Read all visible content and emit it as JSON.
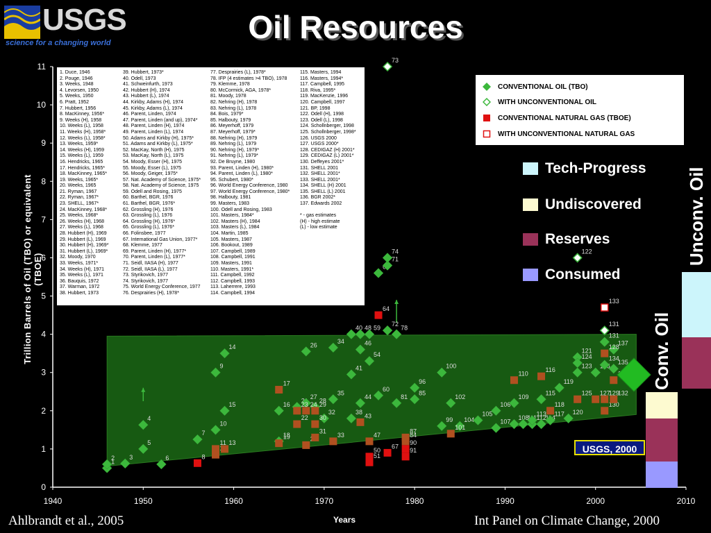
{
  "logo": {
    "text": "USGS",
    "tagline": "science for a changing world"
  },
  "title": "Oil Resources",
  "footer": {
    "left": "Ahlbrandt et al., 2005",
    "right": "Int Panel on Climate Change, 2000"
  },
  "usgs_badge": "USGS, 2000",
  "vertical_labels": {
    "unconv": "Unconv. Oil",
    "conv": "Conv. Oil"
  },
  "categories": [
    {
      "label": "Tech-Progress",
      "color": "#ccf5fb"
    },
    {
      "label": "Undiscovered",
      "color": "#fdfad0"
    },
    {
      "label": "Reserves",
      "color": "#9a3259"
    },
    {
      "label": "Consumed",
      "color": "#9999ff"
    }
  ],
  "legend": [
    {
      "label": "CONVENTIONAL OIL (TBO)",
      "marker": "filled-diamond",
      "color": "#3cb83c"
    },
    {
      "label": "WITH UNCONVENTIONAL OIL",
      "marker": "open-diamond",
      "color": "#3cb83c"
    },
    {
      "label": "CONVENTIONAL NATURAL GAS (TBOE)",
      "marker": "filled-square",
      "color": "#e01010"
    },
    {
      "label": "WITH UNCONVENTIONAL NATURAL GAS",
      "marker": "open-square",
      "color": "#e01010"
    }
  ],
  "references": [
    [
      "1. Duce, 1946",
      "2. Pouge, 1946",
      "3. Weeks, 1948",
      "4. Levorsen, 1950",
      "5. Weeks, 1950",
      "6. Pratt, 1952",
      "7. Hubbert, 1956",
      "8. MacKinney, 1956*",
      "9. Weeks (H), 1958",
      "10. Weeks (L), 1958",
      "11. Weeks (H), 1958*",
      "12. Weeks (L), 1958*",
      "13. Weeks, 1959*",
      "14. Weeks (H), 1959",
      "15. Weeks (L), 1959",
      "16. Hendricks, 1965",
      "17. Hendricks, 1965*",
      "18. MacKinney, 1965*",
      "19. Weeks, 1965*",
      "20. Weeks, 1965",
      "21. Ryman, 1967",
      "22. Ryman, 1967*",
      "23. SHELL, 1967*",
      "24. MacKinney, 1968*",
      "25. Weeks, 1968*",
      "26. Weeks (H), 1968",
      "27. Weeks (L), 1968",
      "28. Hubbert (H), 1969",
      "29. Hubbert (L), 1969",
      "30. Hubbert (H), 1969*",
      "31. Hubbert (L), 1969*",
      "32. Moody, 1970",
      "33. Weeks, 1971*",
      "34. Weeks (H), 1971",
      "35. Weeks (L), 1971",
      "36. Bauquis, 1972",
      "37. Warman, 1972",
      "38. Hubbert, 1973"
    ],
    [
      "39. Hubbert, 1973*",
      "40. Odell, 1973",
      "41. Schweinfurth, 1973",
      "42. Hubbert (H), 1974",
      "43. Hubbert (L), 1974",
      "44. Kirkby, Adams (H), 1974",
      "45. Kirkby, Adams (L), 1974",
      "46. Parent, Linden, 1974",
      "47. Parent, Linden (and up), 1974*",
      "48. Parent, Linden (H), 1974",
      "49. Parent, Linden (L), 1974",
      "50. Adams and Kirkby (H), 1975*",
      "51. Adams and Kirkby (L), 1975*",
      "52. MacKay, North (H), 1975",
      "53. MacKay, North (L), 1975",
      "54. Moody, Esser (H), 1975",
      "55. Moody, Esser (L), 1975",
      "56. Moody, Geiger, 1975*",
      "57. Nat. Academy of Science, 1975*",
      "58. Nat. Academy of Science, 1975",
      "59. Odell and Rosing, 1975",
      "60. Barthel, BGR, 1976",
      "61. Barthel, BGR, 1976*",
      "62. Grossling (H), 1976",
      "63. Grossling (L), 1976",
      "64. Grossling (H), 1976*",
      "65. Grossling (L), 1976*",
      "66. Folinsbee, 1977",
      "67. International Gas Union, 1977*",
      "68. Klemme, 1977",
      "69. Parent, Linden (H), 1977*",
      "70. Parent, Linden (L), 1977*",
      "71. Seidl, IIASA (H), 1977",
      "72. Seidl, IIASA (L), 1977",
      "73. Styrikovich, 1977",
      "74. Styrikovich, 1977",
      "75. World Energy Conference, 1977",
      "76. Desprairies (H), 1978*"
    ],
    [
      "77. Desprairies (L), 1978*",
      "78. IFP (4 estimates >4 TBO), 1978",
      "79. Klemme, 1978",
      "80. McCormick, AGA, 1978*",
      "81. Moody, 1978",
      "82. Nehring (H), 1978",
      "83. Nehring (L), 1978",
      "84. Bois, 1979*",
      "85. Halbouty, 1979",
      "86. Meyerhoff, 1979",
      "87. Meyerhoff, 1979*",
      "88. Nehring (H), 1979",
      "89. Nehring (L), 1979",
      "90. Nehring (H), 1979*",
      "91. Nehring (L), 1979*",
      "92. De Bruyne, 1980",
      "93. Parent, Linden (H), 1980*",
      "94. Parent, Linden (L), 1980*",
      "95. Schubert, 1980*",
      "96. World Energy Conference, 1980",
      "97. World Energy Conference, 1980*",
      "98. Halbouty, 1981",
      "99. Masters, 1983",
      "100. Odell and Rosing, 1983",
      "101. Masters, 1984*",
      "102. Masters (H), 1984",
      "103. Masters (L), 1984",
      "104. Martin, 1985",
      "105. Masters, 1987",
      "106. Bookout, 1989",
      "107. Campbell, 1989",
      "108. Campbell, 1991",
      "109. Masters, 1991",
      "110. Masters, 1991*",
      "111. Campbell, 1992",
      "112. Campbell, 1993",
      "113. Laherrere, 1993",
      "114. Campbell, 1994"
    ],
    [
      "115. Masters, 1994",
      "116. Masters, 1994*",
      "117. Campbell, 1995",
      "118. Riva, 1995*",
      "119. MacKenzie, 1996",
      "120. Campbell, 1997",
      "121. BP, 1998",
      "122. Odell (H), 1998",
      "123. Odell (L), 1998",
      "124. Schollnberger, 1998",
      "125. Schollnberger, 1998*",
      "126. USGS 2000",
      "127. USGS 2000*",
      "128. CEDIGAZ (H) 2001*",
      "129. CEDIGAZ (L) 2001*",
      "130. Deffeyes 2001*",
      "131. SHELL 2001",
      "132. SHELL 2001*",
      "133. SHELL 2001*",
      "134. SHELL (H) 2001",
      "135. SHELL (L) 2001",
      "136. BGR 2002*",
      "137. Edwards 2002",
      "",
      "* - gas estimates",
      "(H) - high estimate",
      "(L) - low estimate"
    ]
  ],
  "chart_data": {
    "type": "scatter",
    "xlabel": "Years",
    "ylabel": "Trillion Barrels of Oil (TBO) or equivalent (TBOE)",
    "xlim": [
      1940,
      2010
    ],
    "ylim": [
      0,
      11
    ],
    "xticks": [
      1940,
      1950,
      1960,
      1970,
      1980,
      1990,
      2000,
      2010
    ],
    "yticks": [
      0,
      1,
      2,
      3,
      4,
      5,
      6,
      7,
      8,
      9,
      10,
      11
    ],
    "band_polygon": [
      [
        1946,
        3.95
      ],
      [
        2004.5,
        4.0
      ],
      [
        2004.5,
        1.9
      ],
      [
        1946,
        0.55
      ]
    ],
    "conventional_oil": [
      {
        "n": 1,
        "x": 1946,
        "y": 0.5
      },
      {
        "n": 2,
        "x": 1946,
        "y": 0.6
      },
      {
        "n": 3,
        "x": 1948,
        "y": 0.62
      },
      {
        "n": 4,
        "x": 1950,
        "y": 1.63
      },
      {
        "n": 5,
        "x": 1950,
        "y": 1.0
      },
      {
        "n": 6,
        "x": 1952,
        "y": 0.6
      },
      {
        "n": 7,
        "x": 1956,
        "y": 1.25
      },
      {
        "n": 9,
        "x": 1958,
        "y": 3.0
      },
      {
        "n": 10,
        "x": 1958,
        "y": 1.5
      },
      {
        "n": 14,
        "x": 1959,
        "y": 3.5
      },
      {
        "n": 15,
        "x": 1959,
        "y": 2.0
      },
      {
        "n": 16,
        "x": 1965,
        "y": 2.0
      },
      {
        "n": 18,
        "x": 1965,
        "y": 1.2
      },
      {
        "n": 21,
        "x": 1967,
        "y": 2.1
      },
      {
        "n": 26,
        "x": 1968,
        "y": 3.55
      },
      {
        "n": 27,
        "x": 1968,
        "y": 2.2
      },
      {
        "n": 28,
        "x": 1969,
        "y": 2.1
      },
      {
        "n": 32,
        "x": 1970,
        "y": 1.8
      },
      {
        "n": 34,
        "x": 1971,
        "y": 3.65
      },
      {
        "n": 35,
        "x": 1971,
        "y": 2.3
      },
      {
        "n": 38,
        "x": 1973,
        "y": 1.8
      },
      {
        "n": 40,
        "x": 1973,
        "y": 4.0
      },
      {
        "n": 41,
        "x": 1973,
        "y": 2.95
      },
      {
        "n": 44,
        "x": 1974,
        "y": 2.2
      },
      {
        "n": 46,
        "x": 1974,
        "y": 3.6
      },
      {
        "n": 48,
        "x": 1974,
        "y": 4.0
      },
      {
        "n": 54,
        "x": 1975,
        "y": 3.3
      },
      {
        "n": 59,
        "x": 1975,
        "y": 4.0
      },
      {
        "n": 60,
        "x": 1976,
        "y": 2.4
      },
      {
        "n": 62,
        "x": 1976,
        "y": 5.6
      },
      {
        "n": 71,
        "x": 1977,
        "y": 5.8
      },
      {
        "n": 72,
        "x": 1977,
        "y": 4.1
      },
      {
        "n": 74,
        "x": 1977,
        "y": 6.0
      },
      {
        "n": 78,
        "x": 1978,
        "y": 4.0
      },
      {
        "n": 81,
        "x": 1978,
        "y": 2.2
      },
      {
        "n": 85,
        "x": 1980,
        "y": 2.3
      },
      {
        "n": 96,
        "x": 1980,
        "y": 2.6
      },
      {
        "n": 99,
        "x": 1983,
        "y": 1.6
      },
      {
        "n": 100,
        "x": 1983,
        "y": 3.0
      },
      {
        "n": 102,
        "x": 1984,
        "y": 2.2
      },
      {
        "n": 104,
        "x": 1985,
        "y": 1.6
      },
      {
        "n": 105,
        "x": 1987,
        "y": 1.75
      },
      {
        "n": 106,
        "x": 1989,
        "y": 2.0
      },
      {
        "n": 107,
        "x": 1989,
        "y": 1.55
      },
      {
        "n": 108,
        "x": 1991,
        "y": 1.65
      },
      {
        "n": 109,
        "x": 1991,
        "y": 2.2
      },
      {
        "n": 111,
        "x": 1992,
        "y": 1.65
      },
      {
        "n": 112,
        "x": 1993,
        "y": 1.65
      },
      {
        "n": 113,
        "x": 1993,
        "y": 1.75
      },
      {
        "n": 114,
        "x": 1994,
        "y": 1.65
      },
      {
        "n": 115,
        "x": 1994,
        "y": 2.3
      },
      {
        "n": 117,
        "x": 1995,
        "y": 1.75
      },
      {
        "n": 119,
        "x": 1996,
        "y": 2.6
      },
      {
        "n": 120,
        "x": 1997,
        "y": 1.8
      },
      {
        "n": 121,
        "x": 1998,
        "y": 3.4
      },
      {
        "n": 123,
        "x": 1998,
        "y": 3.0
      },
      {
        "n": 124,
        "x": 1998,
        "y": 3.25
      },
      {
        "n": 126,
        "x": 2000,
        "y": 3.0
      },
      {
        "n": 131,
        "x": 2001,
        "y": 3.8
      },
      {
        "n": 134,
        "x": 2001,
        "y": 3.2
      },
      {
        "n": 135,
        "x": 2002,
        "y": 3.1
      },
      {
        "n": 137,
        "x": 2002,
        "y": 3.6
      }
    ],
    "with_unconventional_oil": [
      {
        "n": 73,
        "x": 1977,
        "y": 11.0
      },
      {
        "n": 122,
        "x": 1998,
        "y": 6.0
      },
      {
        "n": 131,
        "x": 2001,
        "y": 4.1
      }
    ],
    "conventional_natural_gas": [
      {
        "n": 8,
        "x": 1956,
        "y": 0.63
      },
      {
        "n": 11,
        "x": 1958,
        "y": 1.0
      },
      {
        "n": 12,
        "x": 1958,
        "y": 0.85
      },
      {
        "n": 13,
        "x": 1959,
        "y": 1.0
      },
      {
        "n": 17,
        "x": 1965,
        "y": 2.55
      },
      {
        "n": 19,
        "x": 1965,
        "y": 1.15
      },
      {
        "n": 22,
        "x": 1967,
        "y": 1.65
      },
      {
        "n": 23,
        "x": 1967,
        "y": 2.0
      },
      {
        "n": 24,
        "x": 1968,
        "y": 2.0
      },
      {
        "n": 25,
        "x": 1968,
        "y": 1.1
      },
      {
        "n": 29,
        "x": 1969,
        "y": 2.0
      },
      {
        "n": 30,
        "x": 1969,
        "y": 1.65
      },
      {
        "n": 31,
        "x": 1969,
        "y": 1.3
      },
      {
        "n": 33,
        "x": 1971,
        "y": 1.2
      },
      {
        "n": 43,
        "x": 1974,
        "y": 1.7
      },
      {
        "n": 47,
        "x": 1975,
        "y": 1.2
      },
      {
        "n": 50,
        "x": 1975,
        "y": 0.8
      },
      {
        "n": 51,
        "x": 1975,
        "y": 0.65
      },
      {
        "n": 64,
        "x": 1976,
        "y": 4.5
      },
      {
        "n": 67,
        "x": 1977,
        "y": 0.9
      },
      {
        "n": 84,
        "x": 1979,
        "y": 1.2
      },
      {
        "n": 87,
        "x": 1979,
        "y": 1.3
      },
      {
        "n": 90,
        "x": 1979,
        "y": 1.0
      },
      {
        "n": 91,
        "x": 1979,
        "y": 0.8
      },
      {
        "n": 101,
        "x": 1984,
        "y": 1.4
      },
      {
        "n": 110,
        "x": 1991,
        "y": 2.8
      },
      {
        "n": 116,
        "x": 1994,
        "y": 2.9
      },
      {
        "n": 118,
        "x": 1995,
        "y": 2.0
      },
      {
        "n": 125,
        "x": 1998,
        "y": 2.3
      },
      {
        "n": 127,
        "x": 2000,
        "y": 2.3
      },
      {
        "n": 128,
        "x": 2001,
        "y": 3.5
      },
      {
        "n": 129,
        "x": 2001,
        "y": 2.3
      },
      {
        "n": 130,
        "x": 2001,
        "y": 2.0
      },
      {
        "n": 132,
        "x": 2002,
        "y": 2.3
      },
      {
        "n": 136,
        "x": 2002,
        "y": 2.8
      }
    ],
    "with_unconventional_natural_gas": [
      {
        "n": 133,
        "x": 2001,
        "y": 4.7
      }
    ]
  }
}
